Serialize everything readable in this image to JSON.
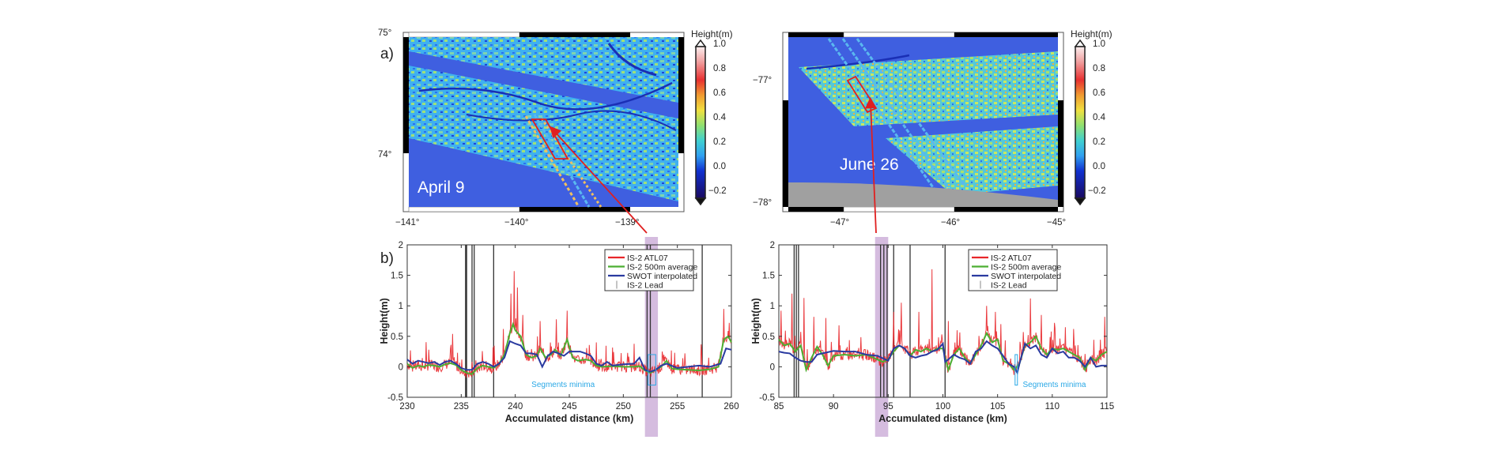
{
  "figure": {
    "panel_a_label": "a)",
    "panel_b_label": "b)"
  },
  "maps": [
    {
      "id": "april",
      "date_label": "April 9",
      "lat_ticks": [
        "75°",
        "74°"
      ],
      "lon_ticks": [
        "−141°",
        "−140°",
        "−139°"
      ],
      "colorbar": {
        "title": "Height(m)",
        "ticks": [
          "1.0",
          "0.8",
          "0.6",
          "0.4",
          "0.2",
          "0.0",
          "−0.2"
        ],
        "range": [
          -0.3,
          1.0
        ],
        "colormap": "jet-to-white"
      }
    },
    {
      "id": "june",
      "date_label": "June 26",
      "lat_ticks": [
        "−77°",
        "−78°"
      ],
      "lon_ticks": [
        "−47°",
        "−46°",
        "−45°"
      ],
      "colorbar": {
        "title": "Height(m)",
        "ticks": [
          "1.0",
          "0.8",
          "0.6",
          "0.4",
          "0.2",
          "0.0",
          "−0.2"
        ],
        "range": [
          -0.3,
          1.0
        ],
        "colormap": "jet-to-white"
      }
    }
  ],
  "colors": {
    "atl07": "#e8262a",
    "avg500": "#4caf32",
    "swot": "#2a3aa0",
    "lead": "#333333",
    "highlight": "#c7a6d4",
    "annotation": "#2aa8e6",
    "map_background": "#3f5fe0",
    "land": "#a0a0a0"
  },
  "chart_data": [
    {
      "type": "line",
      "title": "",
      "xlabel": "Accumulated distance (km)",
      "ylabel": "Height(m)",
      "xlim": [
        230,
        260
      ],
      "ylim": [
        -0.5,
        2
      ],
      "xticks": [
        "230",
        "235",
        "240",
        "245",
        "250",
        "255",
        "260"
      ],
      "yticks": [
        "-0.5",
        "0",
        "0.5",
        "1",
        "1.5",
        "2"
      ],
      "grid": false,
      "legend_position": "top-right",
      "legend": [
        "IS-2 ATL07",
        "IS-2 500m average",
        "SWOT interpolated",
        "IS-2 Lead"
      ],
      "annotation": "Segments minima",
      "highlight_band_x": [
        252.0,
        253.2
      ],
      "minima_box": {
        "x": [
          252.3,
          253.0
        ],
        "y": [
          -0.3,
          0.2
        ]
      },
      "leads_x": [
        235.4,
        235.5,
        236.0,
        236.2,
        238.0,
        252.2,
        252.5,
        257.3
      ],
      "series": [
        {
          "name": "IS-2 500m average",
          "x": [
            230,
            230.5,
            231,
            231.5,
            232,
            232.5,
            233,
            233.5,
            234,
            234.5,
            235,
            235.5,
            236,
            236.5,
            237,
            237.5,
            238,
            238.5,
            239,
            239.5,
            239.8,
            240,
            240.5,
            241,
            241.5,
            242,
            242.3,
            242.8,
            243.3,
            243.7,
            244.2,
            244.8,
            245.3,
            245.8,
            246.5,
            247,
            247.5,
            248,
            249,
            250,
            251,
            251.5,
            252,
            252.5,
            253,
            253.5,
            254,
            254.5,
            255,
            256,
            257,
            258,
            258.8,
            259.3,
            259.7,
            260
          ],
          "y": [
            0.05,
            -0.02,
            0.02,
            0.0,
            0.03,
            0.02,
            0.0,
            0.04,
            0.06,
            0.03,
            -0.05,
            -0.1,
            -0.12,
            -0.02,
            0.02,
            0.0,
            -0.02,
            0.05,
            0.2,
            0.55,
            0.7,
            0.6,
            0.5,
            0.2,
            0.15,
            0.18,
            0.3,
            0.15,
            0.2,
            0.28,
            0.18,
            0.45,
            0.15,
            0.1,
            0.12,
            0.1,
            0.02,
            0.0,
            0.01,
            0.0,
            0.0,
            0.01,
            -0.06,
            -0.1,
            -0.05,
            0.0,
            0.1,
            -0.03,
            -0.04,
            -0.05,
            -0.06,
            -0.04,
            0.0,
            0.45,
            0.5,
            0.4
          ]
        },
        {
          "name": "SWOT interpolated",
          "x": [
            230,
            230.5,
            231,
            231.5,
            232,
            232.5,
            233,
            233.5,
            234,
            234.5,
            235,
            235.5,
            236,
            236.5,
            237,
            237.5,
            238,
            238.5,
            239,
            239.5,
            240,
            240.5,
            241,
            241.5,
            242,
            242.5,
            243,
            243.5,
            244,
            244.5,
            245,
            245.5,
            246,
            246.5,
            247,
            247.5,
            248,
            248.5,
            249,
            250,
            251,
            251.5,
            252,
            252.5,
            253,
            253.5,
            254,
            255,
            256,
            257,
            258,
            259,
            259.5,
            260
          ],
          "y": [
            0.12,
            0.05,
            0.1,
            0.08,
            0.06,
            0.08,
            0.03,
            0.08,
            0.1,
            0.05,
            -0.02,
            -0.05,
            -0.05,
            0.05,
            0.08,
            0.05,
            0.0,
            0.05,
            0.15,
            0.42,
            0.38,
            0.35,
            0.22,
            0.22,
            0.2,
            0.0,
            0.18,
            0.25,
            0.22,
            0.18,
            0.25,
            0.25,
            0.25,
            0.22,
            0.18,
            0.05,
            0.02,
            0.08,
            0.02,
            0.04,
            0.05,
            0.15,
            -0.05,
            -0.08,
            -0.05,
            0.02,
            0.05,
            -0.02,
            0.0,
            0.02,
            0.0,
            0.05,
            0.3,
            0.28
          ]
        },
        {
          "name": "IS-2 ATL07",
          "style": "noisy",
          "base": "IS-2 500m average",
          "peaks": [
            [
              230.3,
              0.27
            ],
            [
              232.0,
              0.28
            ],
            [
              234.2,
              0.54
            ],
            [
              238.9,
              0.62
            ],
            [
              239.6,
              1.2
            ],
            [
              239.9,
              1.57
            ],
            [
              240.2,
              1.3
            ],
            [
              240.7,
              0.85
            ],
            [
              242.3,
              0.75
            ],
            [
              243.8,
              0.78
            ],
            [
              244.8,
              0.92
            ],
            [
              247.5,
              0.4
            ],
            [
              253.6,
              0.25
            ],
            [
              259.3,
              0.95
            ],
            [
              259.8,
              0.72
            ]
          ]
        }
      ]
    },
    {
      "type": "line",
      "title": "",
      "xlabel": "Accumulated distance (km)",
      "ylabel": "Height(m)",
      "xlim": [
        85,
        115
      ],
      "ylim": [
        -0.5,
        2
      ],
      "xticks": [
        "85",
        "90",
        "95",
        "100",
        "105",
        "110",
        "115"
      ],
      "yticks": [
        "-0.5",
        "0",
        "0.5",
        "1",
        "1.5",
        "2"
      ],
      "grid": false,
      "legend_position": "top-right",
      "legend": [
        "IS-2 ATL07",
        "IS-2 500m average",
        "SWOT interpolated",
        "IS-2 Lead"
      ],
      "annotation": "Segments minima",
      "highlight_band_x": [
        93.8,
        95.0
      ],
      "minima_box": {
        "x": [
          106.6,
          106.8
        ],
        "y": [
          -0.3,
          0.2
        ]
      },
      "leads_x": [
        86.4,
        86.6,
        86.8,
        94.3,
        94.6,
        94.9,
        95.5,
        97.0,
        100.2
      ],
      "series": [
        {
          "name": "IS-2 500m average",
          "x": [
            85,
            85.5,
            86,
            86.5,
            87,
            87.5,
            88,
            88.5,
            89,
            89.5,
            90,
            91,
            92,
            93,
            94,
            94.5,
            95,
            95.5,
            96,
            96.5,
            97,
            97.5,
            98,
            98.5,
            99,
            99.5,
            100,
            100.5,
            101,
            101.5,
            102,
            102.5,
            103,
            103.5,
            104,
            104.5,
            105,
            105.5,
            106,
            106.5,
            107,
            107.5,
            108,
            108.5,
            109,
            109.5,
            110,
            110.5,
            111,
            111.5,
            112,
            112.5,
            113,
            113.5,
            114,
            114.5,
            115
          ],
          "y": [
            0.45,
            0.35,
            0.38,
            0.25,
            0.35,
            -0.05,
            0.15,
            0.33,
            0.2,
            0.02,
            0.18,
            0.2,
            0.18,
            0.2,
            0.12,
            0.08,
            0.12,
            0.25,
            0.35,
            0.3,
            0.18,
            0.28,
            0.25,
            0.3,
            0.25,
            0.3,
            0.3,
            -0.05,
            0.2,
            0.3,
            0.15,
            0.05,
            0.2,
            0.35,
            0.55,
            0.4,
            0.45,
            0.1,
            0.05,
            -0.05,
            0.05,
            0.35,
            0.4,
            0.5,
            0.3,
            0.2,
            0.3,
            0.28,
            0.3,
            0.25,
            0.2,
            0.15,
            -0.05,
            0.15,
            0.1,
            0.2,
            0.25
          ]
        },
        {
          "name": "SWOT interpolated",
          "x": [
            85,
            85.5,
            86,
            86.5,
            87,
            87.5,
            88,
            88.5,
            89,
            90,
            91,
            92,
            93,
            94,
            95,
            95.5,
            96,
            96.5,
            97,
            97.5,
            98,
            98.5,
            99,
            99.5,
            100,
            100.2,
            100.5,
            101,
            101.5,
            102,
            102.5,
            103,
            103.5,
            104,
            104.5,
            105,
            105.5,
            106,
            106.5,
            106.8,
            107,
            107.5,
            108,
            108.5,
            109,
            109.5,
            110,
            110.5,
            111,
            111.5,
            112,
            112.5,
            113,
            113.5,
            114,
            114.5,
            115
          ],
          "y": [
            0.25,
            0.23,
            0.22,
            0.15,
            0.1,
            0.08,
            0.08,
            0.2,
            0.22,
            0.26,
            0.25,
            0.25,
            0.2,
            0.18,
            0.1,
            0.3,
            0.35,
            0.3,
            0.18,
            0.15,
            0.18,
            0.2,
            0.25,
            0.28,
            0.38,
            0.08,
            0.12,
            0.2,
            0.15,
            0.12,
            0.05,
            0.25,
            0.3,
            0.42,
            0.35,
            0.3,
            0.18,
            0.05,
            0.0,
            -0.1,
            0.05,
            0.38,
            0.3,
            0.35,
            0.2,
            0.15,
            0.3,
            0.22,
            0.25,
            0.15,
            0.15,
            0.1,
            0.0,
            0.15,
            0.0,
            0.02,
            0.02
          ]
        },
        {
          "name": "IS-2 ATL07",
          "style": "noisy",
          "base": "IS-2 500m average",
          "peaks": [
            [
              85.2,
              0.92
            ],
            [
              86.2,
              1.2
            ],
            [
              87.3,
              1.13
            ],
            [
              88.2,
              0.82
            ],
            [
              89.3,
              0.8
            ],
            [
              90.5,
              0.68
            ],
            [
              95.5,
              0.9
            ],
            [
              96.2,
              1.05
            ],
            [
              97.8,
              0.9
            ],
            [
              99.0,
              1.6
            ],
            [
              100.5,
              0.75
            ],
            [
              101.3,
              0.6
            ],
            [
              104.0,
              1.0
            ],
            [
              104.8,
              0.9
            ],
            [
              105.3,
              0.7
            ],
            [
              108.0,
              1.12
            ],
            [
              109.0,
              0.85
            ],
            [
              110.2,
              0.72
            ],
            [
              111.2,
              0.65
            ],
            [
              114.8,
              0.82
            ]
          ]
        }
      ]
    }
  ]
}
